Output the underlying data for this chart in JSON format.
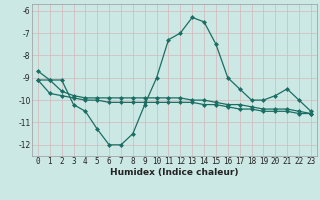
{
  "xlabel": "Humidex (Indice chaleur)",
  "ylabel": "",
  "background_color": "#cce8e4",
  "grid_color": "#b8d8d4",
  "line_color": "#1a6e63",
  "x": [
    0,
    1,
    2,
    3,
    4,
    5,
    6,
    7,
    8,
    9,
    10,
    11,
    12,
    13,
    14,
    15,
    16,
    17,
    18,
    19,
    20,
    21,
    22,
    23
  ],
  "line1": [
    -8.7,
    -9.1,
    -9.1,
    -10.2,
    -10.5,
    -11.3,
    -12.0,
    -12.0,
    -11.5,
    -10.2,
    -9.0,
    -7.3,
    -7.0,
    -6.3,
    -6.5,
    -7.5,
    -9.0,
    -9.5,
    -10.0,
    -10.0,
    -9.8,
    -9.5,
    -10.0,
    -10.5
  ],
  "line2": [
    -9.1,
    -9.1,
    -9.6,
    -9.8,
    -9.9,
    -9.9,
    -9.9,
    -9.9,
    -9.9,
    -9.9,
    -9.9,
    -9.9,
    -9.9,
    -10.0,
    -10.0,
    -10.1,
    -10.2,
    -10.2,
    -10.3,
    -10.4,
    -10.4,
    -10.4,
    -10.5,
    -10.6
  ],
  "line3": [
    -9.1,
    -9.7,
    -9.8,
    -9.9,
    -10.0,
    -10.0,
    -10.1,
    -10.1,
    -10.1,
    -10.1,
    -10.1,
    -10.1,
    -10.1,
    -10.1,
    -10.2,
    -10.2,
    -10.3,
    -10.4,
    -10.4,
    -10.5,
    -10.5,
    -10.5,
    -10.6,
    -10.6
  ],
  "ylim": [
    -12.5,
    -5.7
  ],
  "xlim": [
    -0.5,
    23.5
  ],
  "yticks": [
    -6,
    -7,
    -8,
    -9,
    -10,
    -11,
    -12
  ],
  "xticks": [
    0,
    1,
    2,
    3,
    4,
    5,
    6,
    7,
    8,
    9,
    10,
    11,
    12,
    13,
    14,
    15,
    16,
    17,
    18,
    19,
    20,
    21,
    22,
    23
  ],
  "xlabel_fontsize": 6.5,
  "tick_fontsize": 5.5
}
